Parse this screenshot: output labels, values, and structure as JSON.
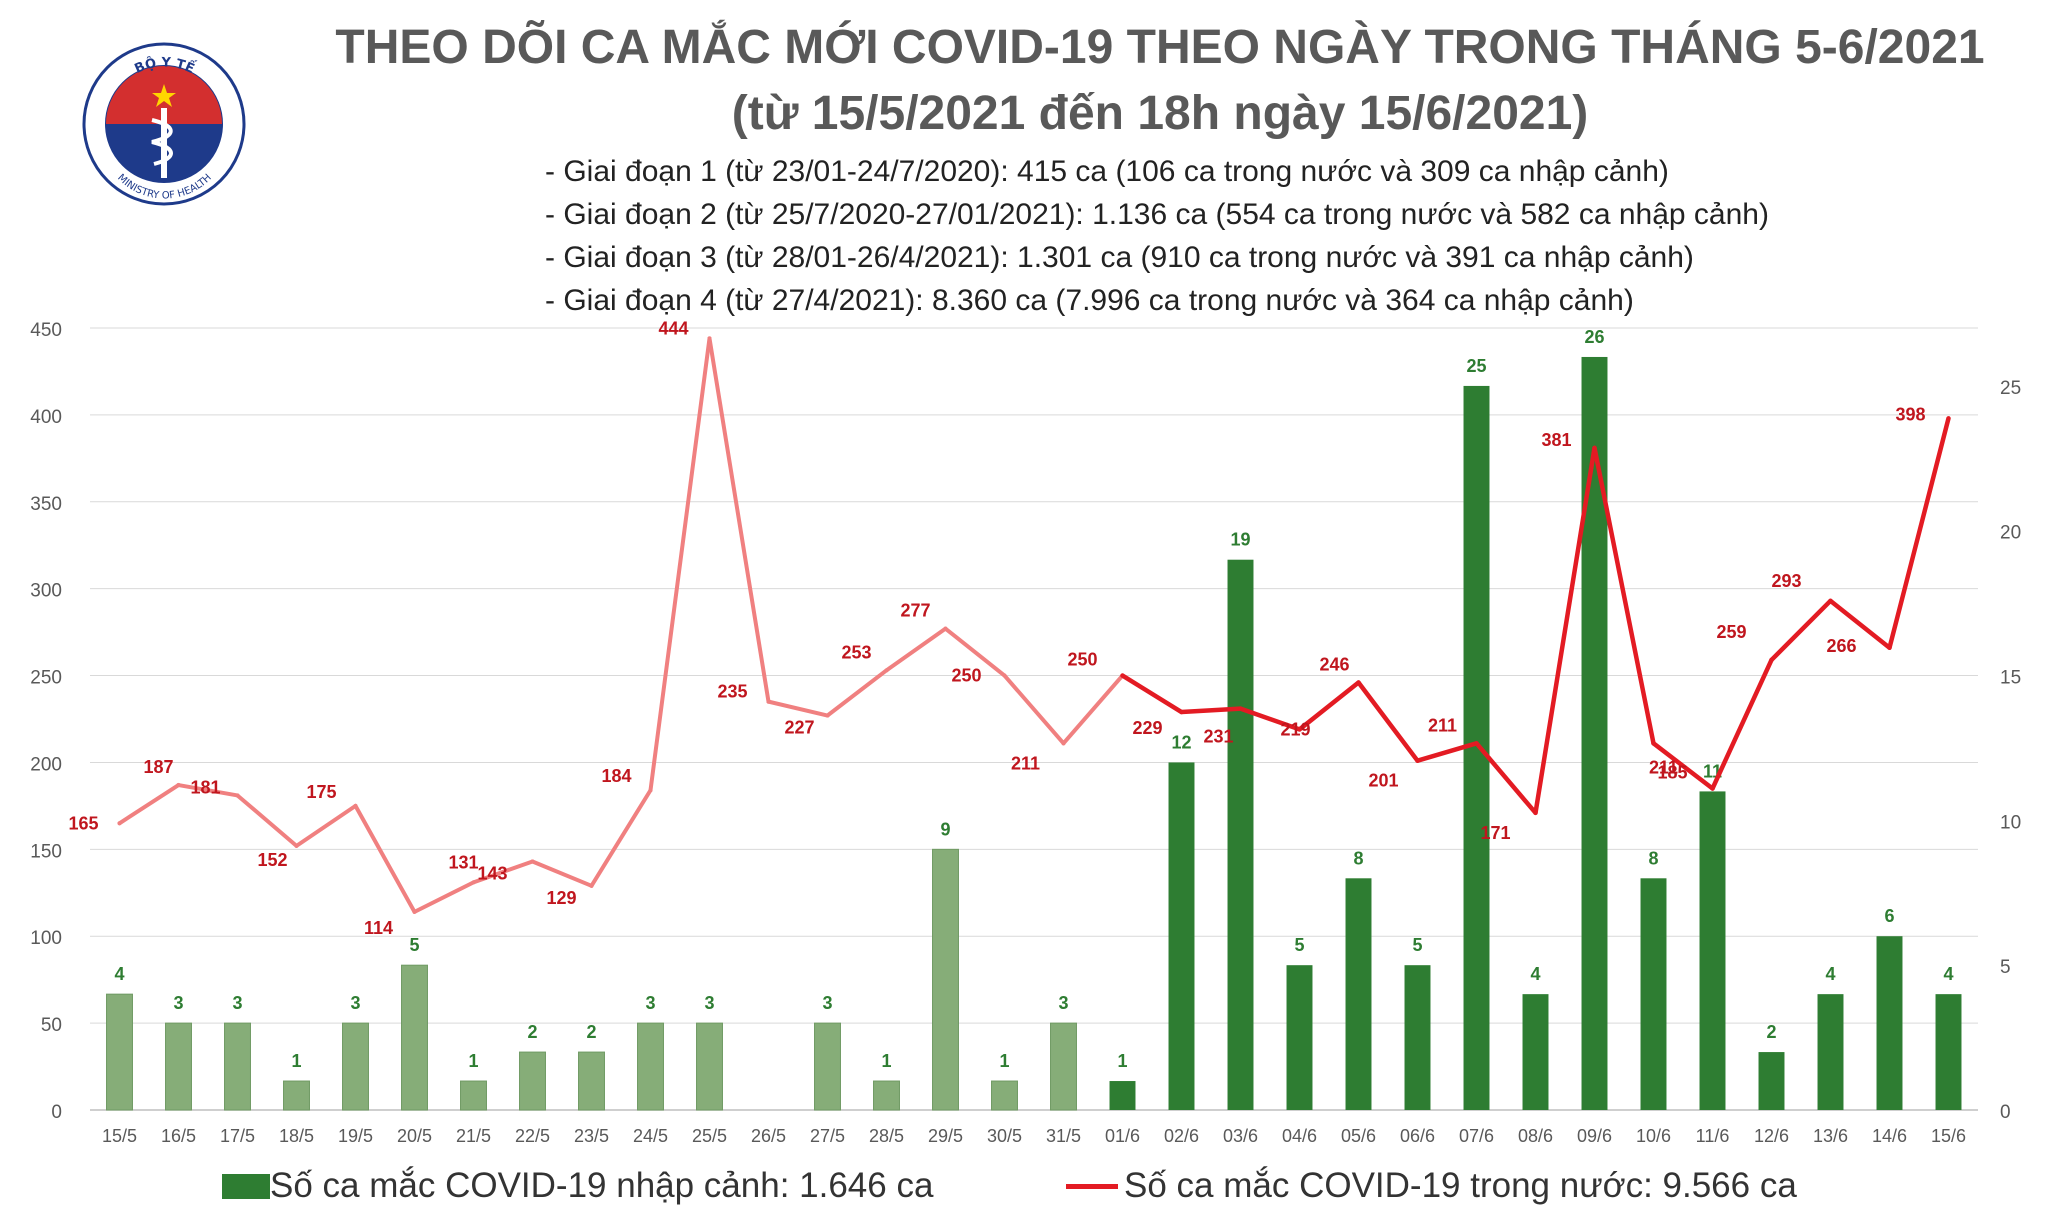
{
  "header": {
    "logo_top_text": "BỘ Y TẾ",
    "logo_bottom_text": "MINISTRY OF HEALTH",
    "title_line1": "THEO DÕI CA MẮC MỚI COVID-19 THEO NGÀY TRONG THÁNG 5-6/2021",
    "title_line2": "(từ 15/5/2021 đến 18h ngày 15/6/2021)",
    "notes": [
      "- Giai đoạn 1 (từ 23/01-24/7/2020): 415 ca (106 ca trong nước và 309 ca nhập cảnh)",
      "- Giai đoạn 2 (từ 25/7/2020-27/01/2021): 1.136 ca (554 ca trong nước và 582 ca nhập cảnh)",
      "- Giai đoạn 3 (từ 28/01-26/4/2021): 1.301 ca (910 ca trong nước và 391 ca nhập cảnh)",
      "- Giai đoạn 4 (từ 27/4/2021): 8.360 ca (7.996 ca trong nước và 364 ca nhập cảnh)"
    ]
  },
  "legend": {
    "bar_label": "Số ca mắc COVID-19 nhập cảnh: 1.646 ca",
    "line_label": "Số ca mắc COVID-19 trong nước: 9.566 ca"
  },
  "colors": {
    "bar_light": "#86AD78",
    "bar_dark": "#2E7D32",
    "bar_label": "#2E7D32",
    "line_light": "#F08080",
    "line_dark": "#E31B23",
    "line_label": "#C0161E",
    "grid": "#d9d9d9",
    "axis_text": "#595959",
    "logo_blue": "#1E3A8A",
    "logo_red": "#D32F2F"
  },
  "chart_data": {
    "type": "bar",
    "categories": [
      "15/5",
      "16/5",
      "17/5",
      "18/5",
      "19/5",
      "20/5",
      "21/5",
      "22/5",
      "23/5",
      "24/5",
      "25/5",
      "26/5",
      "27/5",
      "28/5",
      "29/5",
      "30/5",
      "31/5",
      "01/6",
      "02/6",
      "03/6",
      "04/6",
      "05/6",
      "06/6",
      "07/6",
      "08/6",
      "09/6",
      "10/6",
      "11/6",
      "12/6",
      "13/6",
      "14/6",
      "15/6"
    ],
    "series": [
      {
        "name": "Số ca mắc COVID-19 nhập cảnh: 1.646 ca",
        "type": "bar",
        "axis": "right",
        "values": [
          4,
          3,
          3,
          1,
          3,
          5,
          1,
          2,
          2,
          3,
          3,
          0,
          3,
          1,
          9,
          1,
          3,
          1,
          12,
          19,
          5,
          8,
          5,
          25,
          4,
          26,
          8,
          11,
          2,
          4,
          6,
          4
        ],
        "labels": [
          "4",
          "3",
          "3",
          "1",
          "3",
          "5",
          "1",
          "2",
          "2",
          "3",
          "3",
          "",
          "3",
          "1",
          "9",
          "1",
          "3",
          "1",
          "12",
          "19",
          "5",
          "8",
          "5",
          "25",
          "4",
          "26",
          "8",
          "11",
          "2",
          "4",
          "6",
          "4"
        ]
      },
      {
        "name": "Số ca mắc COVID-19 trong nước: 9.566 ca",
        "type": "line",
        "axis": "left",
        "values": [
          165,
          187,
          181,
          152,
          175,
          114,
          131,
          143,
          129,
          184,
          444,
          235,
          227,
          253,
          277,
          250,
          211,
          250,
          229,
          231,
          219,
          246,
          201,
          211,
          171,
          381,
          211,
          185,
          259,
          293,
          266,
          398
        ],
        "labels": [
          "165",
          "187",
          "181",
          "152",
          "175",
          "114",
          "131",
          "143",
          "129",
          "184",
          "444",
          "235",
          "227",
          "253",
          "277",
          "250",
          "211",
          "250",
          "229",
          "231",
          "219",
          "246",
          "201",
          "211",
          "171",
          "381",
          "211",
          "185",
          "259",
          "293",
          "266",
          "398"
        ]
      }
    ],
    "y_left": {
      "range": [
        0,
        450
      ],
      "ticks": [
        "0",
        "50",
        "100",
        "150",
        "200",
        "250",
        "300",
        "350",
        "400",
        "450"
      ]
    },
    "y_right": {
      "range": [
        0,
        27
      ],
      "ticks": [
        "0",
        "5",
        "10",
        "15",
        "20",
        "25"
      ]
    },
    "highlight_from_index": 17,
    "grid": true,
    "legend_position": "bottom"
  }
}
